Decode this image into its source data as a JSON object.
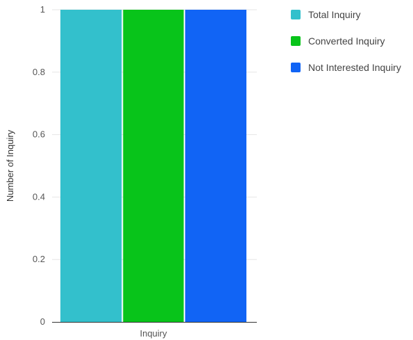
{
  "chart_data": {
    "type": "bar",
    "title": "",
    "xlabel": "Inquiry",
    "ylabel": "Number of Inquiry",
    "categories": [
      "Inquiry"
    ],
    "ylim": [
      0,
      1
    ],
    "yticks": [
      "0",
      "0.2",
      "0.4",
      "0.6",
      "0.8",
      "1"
    ],
    "grid": true,
    "legend_position": "right-top",
    "series": [
      {
        "name": "Total Inquiry",
        "values": [
          1
        ],
        "color": "#33c0cc"
      },
      {
        "name": "Converted Inquiry",
        "values": [
          1
        ],
        "color": "#08c41a"
      },
      {
        "name": "Not Interested Inquiry",
        "values": [
          1
        ],
        "color": "#1164f5"
      }
    ]
  }
}
